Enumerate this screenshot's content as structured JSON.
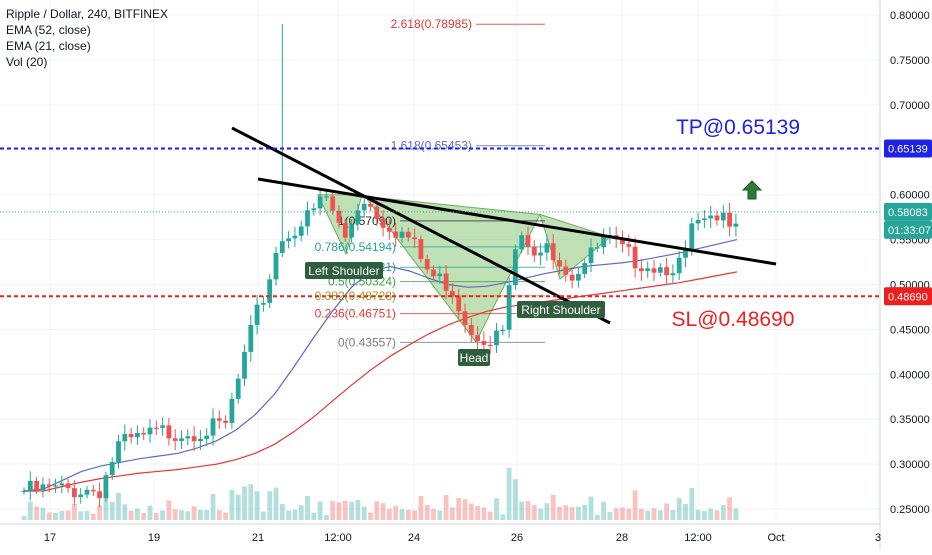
{
  "legend": {
    "title": "Ripple / Dollar, 240, BITFINEX",
    "ema52": "EMA (52, close)",
    "ema21": "EMA (21, close)",
    "vol": "Vol (20)"
  },
  "annotations": {
    "tp": "TP@0.65139",
    "sl": "SL@0.48690",
    "left_shoulder": "Left Shoulder",
    "head": "Head",
    "right_shoulder": "Right Shoulder"
  },
  "fib_levels": [
    {
      "label": "2.618(0.78985)",
      "value": 0.78985,
      "color": "#e53935"
    },
    {
      "label": "1.618(0.65453)",
      "value": 0.65453,
      "color": "#5c6bc0"
    },
    {
      "label": "1(0.57090)",
      "value": 0.5709,
      "color": "#2a2e39"
    },
    {
      "label": "0.786(0.54194)",
      "value": 0.54194,
      "color": "#26a69a"
    },
    {
      "label": "0.618(0.51921)",
      "value": 0.51921,
      "color": "#26a69a"
    },
    {
      "label": "0.5(0.50324)",
      "value": 0.50324,
      "color": "#43a047"
    },
    {
      "label": "0.382(0.48728)",
      "value": 0.48728,
      "color": "#9e9d24"
    },
    {
      "label": "0.236(0.46751)",
      "value": 0.46751,
      "color": "#e53935"
    },
    {
      "label": "0(0.43557)",
      "value": 0.43557,
      "color": "#787b86"
    }
  ],
  "price_tags": {
    "tp": {
      "label": "0.65139",
      "value": 0.65139,
      "color": "#1e22e6"
    },
    "last": {
      "label": "0.58083",
      "value": 0.58083,
      "color": "#26a69a"
    },
    "countdown": {
      "label": "01:33:07",
      "color": "#26a69a"
    },
    "sl": {
      "label": "0.48690",
      "value": 0.4869,
      "color": "#f01f1f"
    }
  },
  "colors": {
    "up": "#26a69a",
    "down": "#ef5350",
    "ema21": "#5c6bc0",
    "ema52": "#e53935",
    "tp": "#1e22e6",
    "sl": "#f01f1f",
    "pattern_fill": "#8cc97a",
    "arrow": "#2e7d32"
  },
  "chart_data": {
    "type": "candlestick",
    "title": "Ripple / Dollar, 240, BITFINEX",
    "ylim": [
      0.235,
      0.81
    ],
    "y_ticks": [
      "0.25000",
      "0.30000",
      "0.35000",
      "0.40000",
      "0.45000",
      "0.50000",
      "0.55000",
      "0.60000",
      "0.65000",
      "0.70000",
      "0.75000",
      "0.80000"
    ],
    "x_ticks": [
      "17",
      "19",
      "21",
      "12:00",
      "24",
      "26",
      "28",
      "12:00",
      "Oct",
      "3"
    ],
    "series": [
      {
        "name": "EMA (52, close)",
        "values": [
          0.27,
          0.27,
          0.275,
          0.28,
          0.284,
          0.287,
          0.29,
          0.292,
          0.294,
          0.297,
          0.3,
          0.305,
          0.312,
          0.322,
          0.336,
          0.352,
          0.37,
          0.388,
          0.405,
          0.42,
          0.433,
          0.445,
          0.455,
          0.463,
          0.47,
          0.475,
          0.478,
          0.481,
          0.484,
          0.487,
          0.49,
          0.493,
          0.496,
          0.499,
          0.502,
          0.506,
          0.51,
          0.514
        ]
      },
      {
        "name": "EMA (21, close)",
        "values": [
          0.27,
          0.272,
          0.282,
          0.292,
          0.298,
          0.302,
          0.306,
          0.309,
          0.312,
          0.318,
          0.326,
          0.338,
          0.355,
          0.378,
          0.408,
          0.44,
          0.47,
          0.497,
          0.515,
          0.52,
          0.515,
          0.507,
          0.5,
          0.497,
          0.498,
          0.502,
          0.507,
          0.512,
          0.516,
          0.52,
          0.522,
          0.524,
          0.527,
          0.531,
          0.535,
          0.54,
          0.545,
          0.55
        ]
      }
    ],
    "volume": "Vol (20)"
  }
}
